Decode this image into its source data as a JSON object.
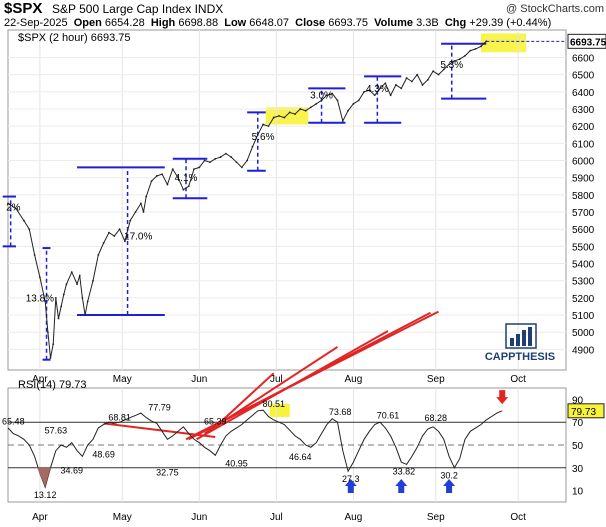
{
  "header": {
    "symbol": "$SPX",
    "name": "S&P 500 Large Cap Index",
    "exchange": "INDX",
    "watermark": "@ StockCharts.com",
    "date": "22-Sep-2025",
    "open_label": "Open",
    "open": "6654.28",
    "high_label": "High",
    "high": "6698.88",
    "low_label": "Low",
    "low": "6648.07",
    "close_label": "Close",
    "close": "6693.75",
    "volume_label": "Volume",
    "volume": "3.3B",
    "chg_label": "Chg",
    "chg": "+29.39 (+0.44%)",
    "legend": "$SPX (2 hour) 6693.75"
  },
  "logo": {
    "text": "CAPPTHESIS"
  },
  "chart_data": [
    {
      "type": "line",
      "name": "price",
      "ylim": [
        4780,
        6760
      ],
      "yticks": [
        4900,
        5000,
        5100,
        5200,
        5300,
        5400,
        5500,
        5600,
        5700,
        5800,
        5900,
        6000,
        6100,
        6200,
        6300,
        6400,
        6500,
        6600
      ],
      "xlim": [
        0,
        210
      ],
      "xticks": [
        {
          "x": 12,
          "label": "Apr"
        },
        {
          "x": 43,
          "label": "May"
        },
        {
          "x": 72,
          "label": "Jun"
        },
        {
          "x": 101,
          "label": "Jul"
        },
        {
          "x": 130,
          "label": "Aug"
        },
        {
          "x": 161,
          "label": "Sep"
        },
        {
          "x": 192,
          "label": "Oct"
        }
      ],
      "last_value_label": "6693.75",
      "path": [
        [
          0,
          5750
        ],
        [
          3,
          5720
        ],
        [
          6,
          5650
        ],
        [
          8,
          5600
        ],
        [
          10,
          5450
        ],
        [
          12,
          5320
        ],
        [
          14,
          5180
        ],
        [
          15,
          5000
        ],
        [
          16,
          4850
        ],
        [
          17,
          4930
        ],
        [
          18,
          5200
        ],
        [
          19,
          5080
        ],
        [
          20,
          5150
        ],
        [
          21,
          5220
        ],
        [
          22,
          5280
        ],
        [
          24,
          5350
        ],
        [
          26,
          5280
        ],
        [
          27,
          5330
        ],
        [
          28,
          5200
        ],
        [
          29,
          5100
        ],
        [
          30,
          5180
        ],
        [
          32,
          5300
        ],
        [
          34,
          5450
        ],
        [
          36,
          5520
        ],
        [
          38,
          5580
        ],
        [
          40,
          5560
        ],
        [
          42,
          5600
        ],
        [
          44,
          5530
        ],
        [
          46,
          5650
        ],
        [
          48,
          5700
        ],
        [
          50,
          5750
        ],
        [
          51,
          5700
        ],
        [
          52,
          5790
        ],
        [
          54,
          5880
        ],
        [
          56,
          5910
        ],
        [
          58,
          5920
        ],
        [
          60,
          5860
        ],
        [
          62,
          5950
        ],
        [
          64,
          5900
        ],
        [
          66,
          5830
        ],
        [
          68,
          5850
        ],
        [
          70,
          5950
        ],
        [
          72,
          5960
        ],
        [
          74,
          6000
        ],
        [
          76,
          5990
        ],
        [
          78,
          6010
        ],
        [
          80,
          6020
        ],
        [
          82,
          6040
        ],
        [
          84,
          6020
        ],
        [
          86,
          5990
        ],
        [
          88,
          5960
        ],
        [
          90,
          6000
        ],
        [
          92,
          6080
        ],
        [
          94,
          6150
        ],
        [
          96,
          6210
        ],
        [
          98,
          6200
        ],
        [
          100,
          6250
        ],
        [
          102,
          6260
        ],
        [
          104,
          6250
        ],
        [
          106,
          6280
        ],
        [
          108,
          6270
        ],
        [
          110,
          6300
        ],
        [
          112,
          6290
        ],
        [
          114,
          6310
        ],
        [
          116,
          6330
        ],
        [
          118,
          6350
        ],
        [
          120,
          6380
        ],
        [
          122,
          6390
        ],
        [
          124,
          6350
        ],
        [
          126,
          6230
        ],
        [
          128,
          6290
        ],
        [
          130,
          6330
        ],
        [
          132,
          6350
        ],
        [
          134,
          6400
        ],
        [
          136,
          6410
        ],
        [
          138,
          6380
        ],
        [
          140,
          6420
        ],
        [
          142,
          6450
        ],
        [
          144,
          6380
        ],
        [
          146,
          6440
        ],
        [
          148,
          6420
        ],
        [
          150,
          6480
        ],
        [
          152,
          6460
        ],
        [
          154,
          6500
        ],
        [
          156,
          6440
        ],
        [
          158,
          6470
        ],
        [
          160,
          6520
        ],
        [
          162,
          6500
        ],
        [
          164,
          6530
        ],
        [
          166,
          6560
        ],
        [
          168,
          6580
        ],
        [
          170,
          6590
        ],
        [
          172,
          6610
        ],
        [
          174,
          6640
        ],
        [
          176,
          6650
        ],
        [
          178,
          6665
        ],
        [
          180,
          6694
        ]
      ],
      "annotations": [
        {
          "label": "2%",
          "x": 2,
          "y": 5710
        },
        {
          "label": "13.8%",
          "x": 12,
          "y": 5180
        },
        {
          "label": "17.0%",
          "x": 49,
          "y": 5540
        },
        {
          "label": "4.1%",
          "x": 67,
          "y": 5880
        },
        {
          "label": "5.6%",
          "x": 96,
          "y": 6120
        },
        {
          "label": "3.0%",
          "x": 118,
          "y": 6360
        },
        {
          "label": "4.3%",
          "x": 139,
          "y": 6400
        },
        {
          "label": "5.3%",
          "x": 167,
          "y": 6540
        }
      ]
    },
    {
      "type": "line",
      "name": "rsi",
      "legend": "RSI(14) 79.73",
      "ylim": [
        0,
        100
      ],
      "yticks": [
        10,
        30,
        50,
        70,
        90
      ],
      "levels": [
        30,
        50,
        70
      ],
      "last_value_label": "79.73",
      "path": [
        [
          0,
          65
        ],
        [
          2,
          60
        ],
        [
          4,
          58
        ],
        [
          6,
          55
        ],
        [
          8,
          50
        ],
        [
          10,
          40
        ],
        [
          12,
          25
        ],
        [
          14,
          13
        ],
        [
          16,
          30
        ],
        [
          18,
          45
        ],
        [
          20,
          50
        ],
        [
          22,
          48
        ],
        [
          24,
          52
        ],
        [
          26,
          45
        ],
        [
          28,
          40
        ],
        [
          30,
          50
        ],
        [
          32,
          55
        ],
        [
          34,
          65
        ],
        [
          36,
          68
        ],
        [
          38,
          70
        ],
        [
          40,
          69
        ],
        [
          42,
          70
        ],
        [
          44,
          72
        ],
        [
          46,
          74
        ],
        [
          48,
          76
        ],
        [
          50,
          78
        ],
        [
          52,
          74
        ],
        [
          54,
          71
        ],
        [
          56,
          69
        ],
        [
          58,
          62
        ],
        [
          60,
          55
        ],
        [
          62,
          58
        ],
        [
          64,
          62
        ],
        [
          66,
          66
        ],
        [
          68,
          60
        ],
        [
          70,
          55
        ],
        [
          72,
          52
        ],
        [
          74,
          48
        ],
        [
          76,
          45
        ],
        [
          78,
          41
        ],
        [
          80,
          50
        ],
        [
          82,
          58
        ],
        [
          84,
          62
        ],
        [
          86,
          65
        ],
        [
          88,
          68
        ],
        [
          90,
          72
        ],
        [
          92,
          76
        ],
        [
          94,
          80
        ],
        [
          96,
          80.5
        ],
        [
          98,
          75
        ],
        [
          100,
          72
        ],
        [
          102,
          70
        ],
        [
          104,
          68
        ],
        [
          106,
          63
        ],
        [
          108,
          58
        ],
        [
          110,
          55
        ],
        [
          112,
          50
        ],
        [
          114,
          48
        ],
        [
          116,
          52
        ],
        [
          118,
          60
        ],
        [
          120,
          68
        ],
        [
          122,
          73
        ],
        [
          124,
          70
        ],
        [
          126,
          45
        ],
        [
          128,
          27
        ],
        [
          130,
          35
        ],
        [
          132,
          45
        ],
        [
          134,
          55
        ],
        [
          136,
          62
        ],
        [
          138,
          68
        ],
        [
          140,
          70
        ],
        [
          142,
          65
        ],
        [
          144,
          58
        ],
        [
          146,
          48
        ],
        [
          148,
          35
        ],
        [
          150,
          33
        ],
        [
          152,
          40
        ],
        [
          154,
          48
        ],
        [
          156,
          58
        ],
        [
          158,
          64
        ],
        [
          160,
          66
        ],
        [
          162,
          62
        ],
        [
          164,
          55
        ],
        [
          166,
          40
        ],
        [
          168,
          30
        ],
        [
          170,
          38
        ],
        [
          172,
          55
        ],
        [
          174,
          62
        ],
        [
          176,
          65
        ],
        [
          178,
          68
        ],
        [
          180,
          72
        ],
        [
          182,
          75
        ],
        [
          184,
          78
        ],
        [
          186,
          80
        ]
      ],
      "annotations": [
        {
          "label": "65.48",
          "x": 2,
          "y": 65.5
        },
        {
          "label": "57.63",
          "x": 18,
          "y": 57.6
        },
        {
          "label": "34.69",
          "x": 24,
          "y": 34.7
        },
        {
          "label": "13.12",
          "x": 14,
          "y": 13.1
        },
        {
          "label": "48.69",
          "x": 36,
          "y": 48.7
        },
        {
          "label": "68.81",
          "x": 42,
          "y": 68.8
        },
        {
          "label": "77.79",
          "x": 57,
          "y": 77.8
        },
        {
          "label": "32.75",
          "x": 60,
          "y": 32.8
        },
        {
          "label": "65.39",
          "x": 78,
          "y": 65.4
        },
        {
          "label": "40.95",
          "x": 86,
          "y": 40.9
        },
        {
          "label": "80.51",
          "x": 100,
          "y": 80.5
        },
        {
          "label": "46.64",
          "x": 110,
          "y": 46.6
        },
        {
          "label": "73.68",
          "x": 125,
          "y": 73.7
        },
        {
          "label": "27.3",
          "x": 129,
          "y": 27.3
        },
        {
          "label": "70.61",
          "x": 143,
          "y": 70.6
        },
        {
          "label": "33.82",
          "x": 149,
          "y": 33.8
        },
        {
          "label": "68.28",
          "x": 161,
          "y": 68.3
        },
        {
          "label": "30.2",
          "x": 166,
          "y": 30.2
        }
      ]
    }
  ]
}
